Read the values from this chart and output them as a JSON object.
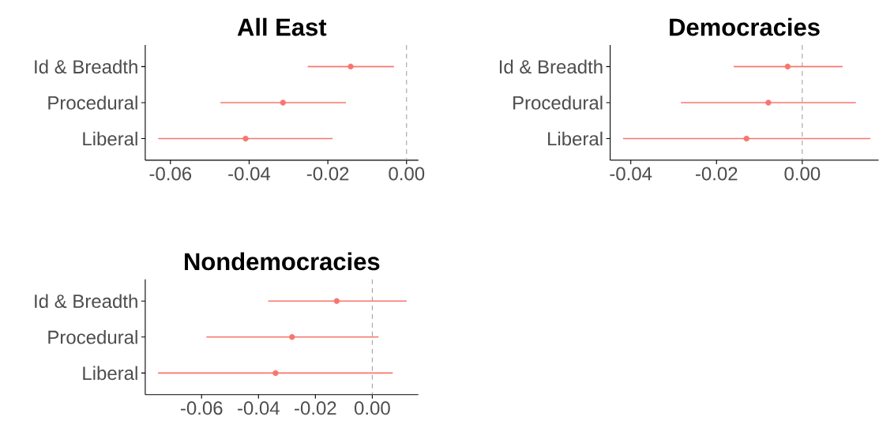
{
  "chart_data": [
    {
      "type": "scatter",
      "title": "All East",
      "orientation": "horizontal",
      "categories": [
        "Id & Breadth",
        "Procedural",
        "Liberal"
      ],
      "values": [
        -0.0142,
        -0.0314,
        -0.0409
      ],
      "errors": [
        [
          -0.0251,
          -0.0032
        ],
        [
          -0.0473,
          -0.0154
        ],
        [
          -0.0631,
          -0.0188
        ]
      ],
      "color": "#f8766d",
      "marker": "circle",
      "xlim": [
        -0.0664,
        0.003
      ],
      "xticks": [
        {
          "value": -0.06,
          "label": "-0.06"
        },
        {
          "value": -0.04,
          "label": "-0.04"
        },
        {
          "value": -0.02,
          "label": "-0.02"
        },
        {
          "value": 0,
          "label": "0.00"
        }
      ],
      "ref_lines": [
        {
          "axis": "x",
          "value": 0,
          "color": "#999999",
          "line_style": "dashed"
        }
      ]
    },
    {
      "type": "scatter",
      "title": "Democracies",
      "orientation": "horizontal",
      "categories": [
        "Id & Breadth",
        "Procedural",
        "Liberal"
      ],
      "values": [
        -0.0034,
        -0.0079,
        -0.013
      ],
      "errors": [
        [
          -0.016,
          0.0094
        ],
        [
          -0.0283,
          0.0125
        ],
        [
          -0.0418,
          0.0159
        ]
      ],
      "color": "#f8766d",
      "marker": "circle",
      "xlim": [
        -0.0448,
        0.0178
      ],
      "xticks": [
        {
          "value": -0.04,
          "label": "-0.04"
        },
        {
          "value": -0.02,
          "label": "-0.02"
        },
        {
          "value": 0,
          "label": "0.00"
        }
      ],
      "ref_lines": [
        {
          "axis": "x",
          "value": 0,
          "color": "#999999",
          "line_style": "dashed"
        }
      ]
    },
    {
      "type": "scatter",
      "title": "Nondemocracies",
      "orientation": "horizontal",
      "categories": [
        "Id & Breadth",
        "Procedural",
        "Liberal"
      ],
      "values": [
        -0.0125,
        -0.0282,
        -0.034
      ],
      "errors": [
        [
          -0.0366,
          0.0121
        ],
        [
          -0.0583,
          0.0022
        ],
        [
          -0.0753,
          0.0072
        ]
      ],
      "color": "#f8766d",
      "marker": "circle",
      "xlim": [
        -0.0798,
        0.0162
      ],
      "xticks": [
        {
          "value": -0.06,
          "label": "-0.06"
        },
        {
          "value": -0.04,
          "label": "-0.04"
        },
        {
          "value": -0.02,
          "label": "-0.02"
        },
        {
          "value": 0,
          "label": "0.00"
        }
      ],
      "ref_lines": [
        {
          "axis": "x",
          "value": 0,
          "color": "#999999",
          "line_style": "dashed"
        }
      ]
    }
  ]
}
